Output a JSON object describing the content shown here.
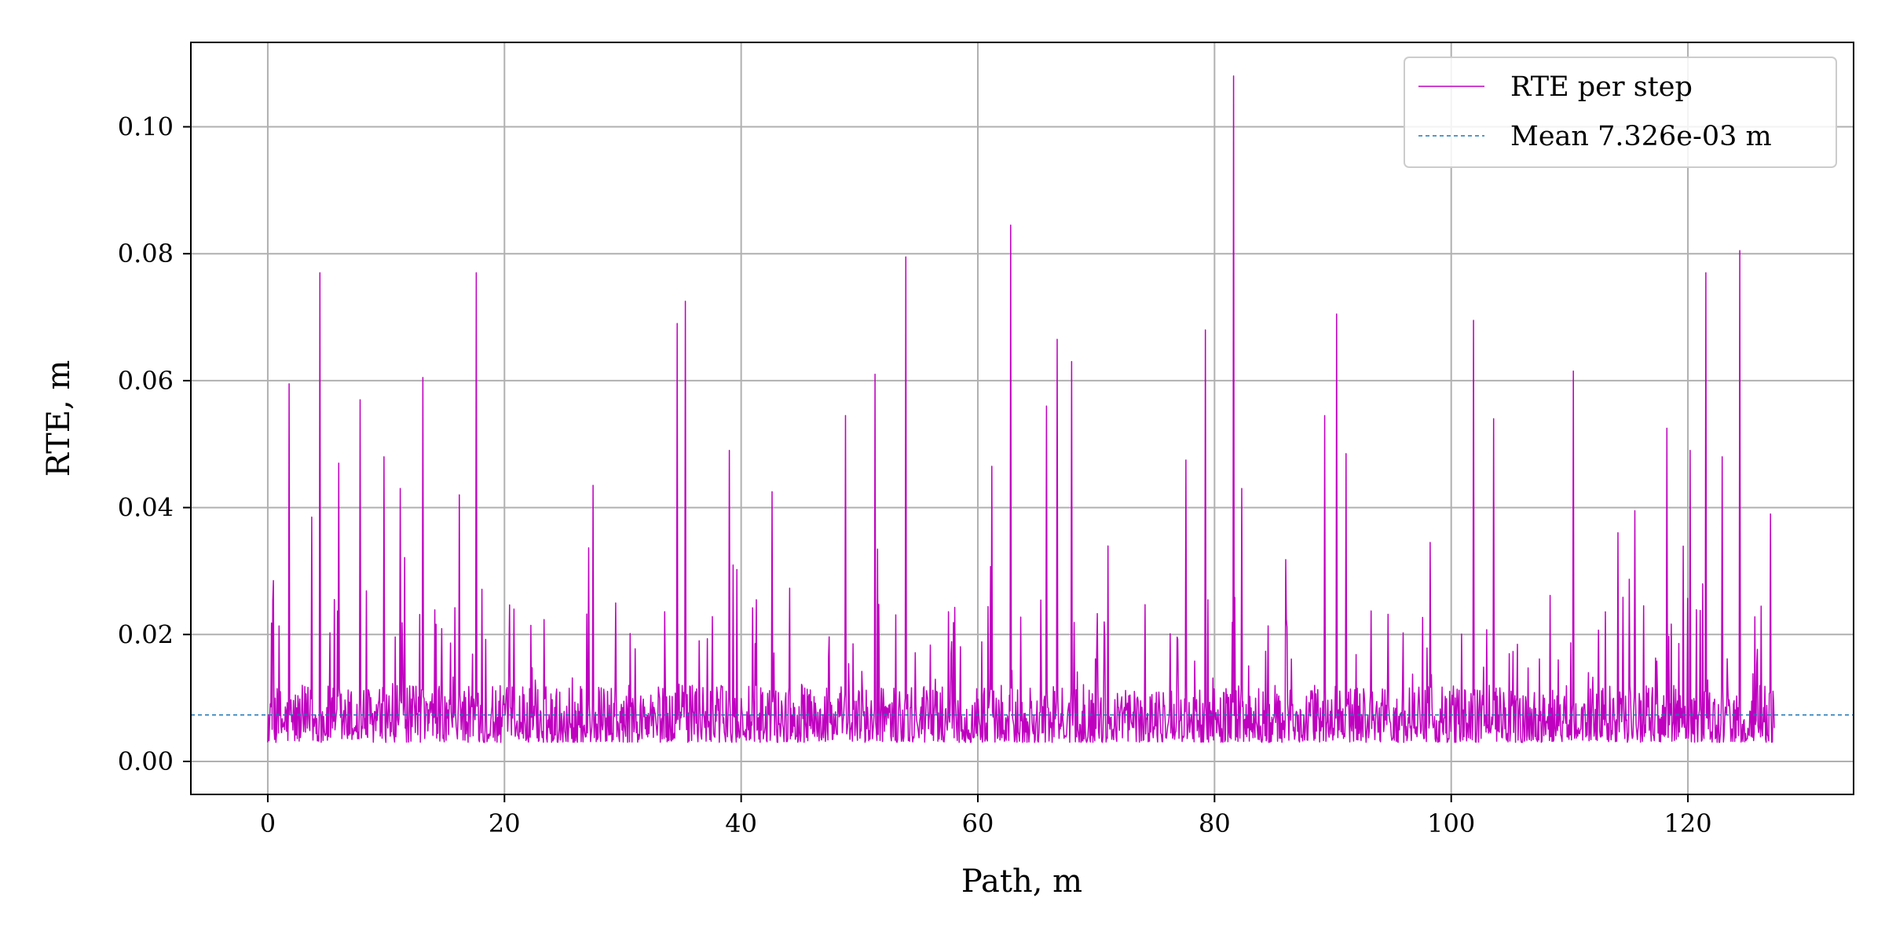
{
  "chart_data": {
    "type": "line",
    "title": "",
    "xlabel": "Path, m",
    "ylabel": "RTE, m",
    "xlim": [
      -6.5,
      134.0
    ],
    "ylim": [
      -0.0052,
      0.1133
    ],
    "x_ticks": [
      0,
      20,
      40,
      60,
      80,
      100,
      120
    ],
    "x_tick_labels": [
      "0",
      "20",
      "40",
      "60",
      "80",
      "100",
      "120"
    ],
    "y_ticks": [
      0.0,
      0.02,
      0.04,
      0.06,
      0.08,
      0.1
    ],
    "y_tick_labels": [
      "0.00",
      "0.02",
      "0.04",
      "0.06",
      "0.08",
      "0.10"
    ],
    "grid": true,
    "legend_position": "top-right",
    "series": [
      {
        "name": "RTE per step",
        "color": "#bf00bf",
        "style": "solid",
        "x_range": [
          0.0,
          127.3
        ],
        "baseline_noise_range": [
          0.001,
          0.02
        ],
        "notable_peaks": [
          {
            "x": 1.8,
            "y": 0.0595
          },
          {
            "x": 3.7,
            "y": 0.0385
          },
          {
            "x": 4.4,
            "y": 0.077
          },
          {
            "x": 6.0,
            "y": 0.047
          },
          {
            "x": 7.8,
            "y": 0.057
          },
          {
            "x": 9.8,
            "y": 0.048
          },
          {
            "x": 11.2,
            "y": 0.043
          },
          {
            "x": 13.1,
            "y": 0.0605
          },
          {
            "x": 16.2,
            "y": 0.042
          },
          {
            "x": 17.6,
            "y": 0.077
          },
          {
            "x": 20.8,
            "y": 0.024
          },
          {
            "x": 27.5,
            "y": 0.0435
          },
          {
            "x": 34.6,
            "y": 0.069
          },
          {
            "x": 35.3,
            "y": 0.0725
          },
          {
            "x": 39.0,
            "y": 0.049
          },
          {
            "x": 42.6,
            "y": 0.0425
          },
          {
            "x": 48.8,
            "y": 0.0545
          },
          {
            "x": 51.3,
            "y": 0.061
          },
          {
            "x": 53.9,
            "y": 0.0795
          },
          {
            "x": 61.2,
            "y": 0.0465
          },
          {
            "x": 62.8,
            "y": 0.0845
          },
          {
            "x": 65.8,
            "y": 0.056
          },
          {
            "x": 66.7,
            "y": 0.0665
          },
          {
            "x": 67.9,
            "y": 0.063
          },
          {
            "x": 77.6,
            "y": 0.0475
          },
          {
            "x": 79.2,
            "y": 0.068
          },
          {
            "x": 81.6,
            "y": 0.108
          },
          {
            "x": 82.3,
            "y": 0.043
          },
          {
            "x": 89.3,
            "y": 0.0545
          },
          {
            "x": 90.3,
            "y": 0.0705
          },
          {
            "x": 91.1,
            "y": 0.0485
          },
          {
            "x": 98.2,
            "y": 0.0345
          },
          {
            "x": 101.9,
            "y": 0.0695
          },
          {
            "x": 103.6,
            "y": 0.054
          },
          {
            "x": 110.3,
            "y": 0.0615
          },
          {
            "x": 115.5,
            "y": 0.0395
          },
          {
            "x": 118.2,
            "y": 0.0525
          },
          {
            "x": 120.2,
            "y": 0.049
          },
          {
            "x": 121.5,
            "y": 0.077
          },
          {
            "x": 122.9,
            "y": 0.048
          },
          {
            "x": 124.4,
            "y": 0.0805
          },
          {
            "x": 127.0,
            "y": 0.039
          }
        ]
      },
      {
        "name": "Mean 7.326e-03 m",
        "color": "#1f77b4",
        "style": "dashed",
        "y": 0.007326
      }
    ]
  }
}
